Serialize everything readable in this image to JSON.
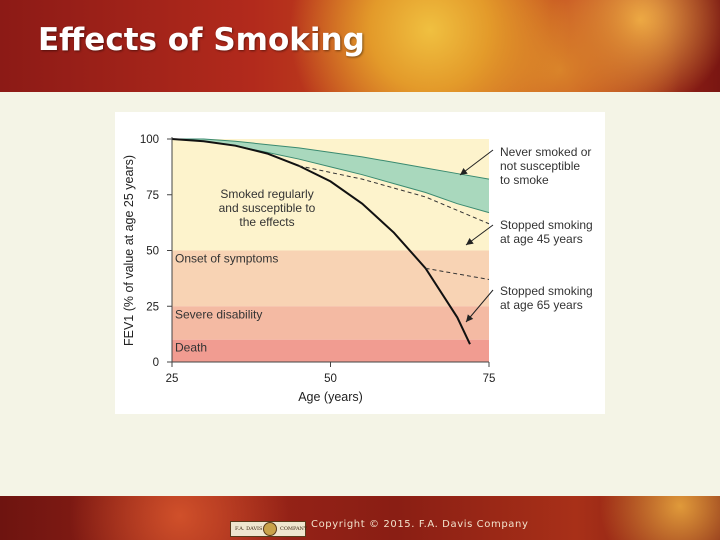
{
  "slide": {
    "title": "Effects of Smoking",
    "copyright": "Copyright © 2015. F.A. Davis Company",
    "logo_text_left": "F.A. DAVIS",
    "logo_text_right": "COMPANY"
  },
  "colors": {
    "never_smoked_band": "#a9d8bd",
    "zone_normal": "#fdf3cc",
    "zone_symptoms": "#f8d3b4",
    "zone_disability": "#f4baa3",
    "zone_death": "#f19c91",
    "curve": "#111111"
  },
  "chart_data": {
    "type": "line",
    "title": "",
    "xlabel": "Age (years)",
    "ylabel": "FEV1 (% of value at age 25 years)",
    "xlim": [
      25,
      75
    ],
    "ylim": [
      0,
      100
    ],
    "x_ticks": [
      25,
      50,
      75
    ],
    "y_ticks": [
      0,
      25,
      50,
      75,
      100
    ],
    "grid": false,
    "zones": [
      {
        "label": "Onset of symptoms",
        "from": 25,
        "to": 50
      },
      {
        "label": "Severe disability",
        "from": 10,
        "to": 25
      },
      {
        "label": "Death",
        "from": 0,
        "to": 10
      }
    ],
    "series": [
      {
        "key": "never_upper",
        "style": "solid-band-edge",
        "x": [
          25,
          30,
          35,
          40,
          45,
          50,
          55,
          60,
          65,
          70,
          75
        ],
        "y": [
          100,
          100,
          99,
          97.5,
          96,
          94,
          92,
          89.5,
          87,
          84.5,
          82
        ]
      },
      {
        "key": "never_lower",
        "style": "solid-band-edge",
        "x": [
          25,
          30,
          35,
          40,
          45,
          50,
          55,
          60,
          65,
          70,
          75
        ],
        "y": [
          100,
          99,
          97,
          94,
          91,
          87.5,
          84,
          80,
          76,
          71,
          67
        ]
      },
      {
        "key": "smoked",
        "style": "solid",
        "x": [
          25,
          30,
          35,
          40,
          45,
          50,
          55,
          60,
          65,
          70,
          72
        ],
        "y": [
          100,
          99,
          97,
          93.5,
          88,
          81,
          71,
          58,
          42,
          20,
          8
        ]
      },
      {
        "key": "stopped45",
        "style": "dashed",
        "x": [
          45,
          50,
          55,
          60,
          65,
          70,
          75
        ],
        "y": [
          88,
          85,
          82,
          78,
          74,
          68,
          62
        ]
      },
      {
        "key": "stopped65",
        "style": "dashed",
        "x": [
          65,
          68,
          71,
          73,
          75
        ],
        "y": [
          42,
          40.5,
          39,
          38,
          37
        ]
      }
    ],
    "annotations": {
      "smoked": [
        "Smoked regularly",
        "and susceptible to",
        "the effects"
      ],
      "never": [
        "Never smoked or",
        "not susceptible",
        "to smoke"
      ],
      "stop45": [
        "Stopped smoking",
        "at age 45 years"
      ],
      "stop65": [
        "Stopped smoking",
        "at age 65 years"
      ]
    }
  }
}
